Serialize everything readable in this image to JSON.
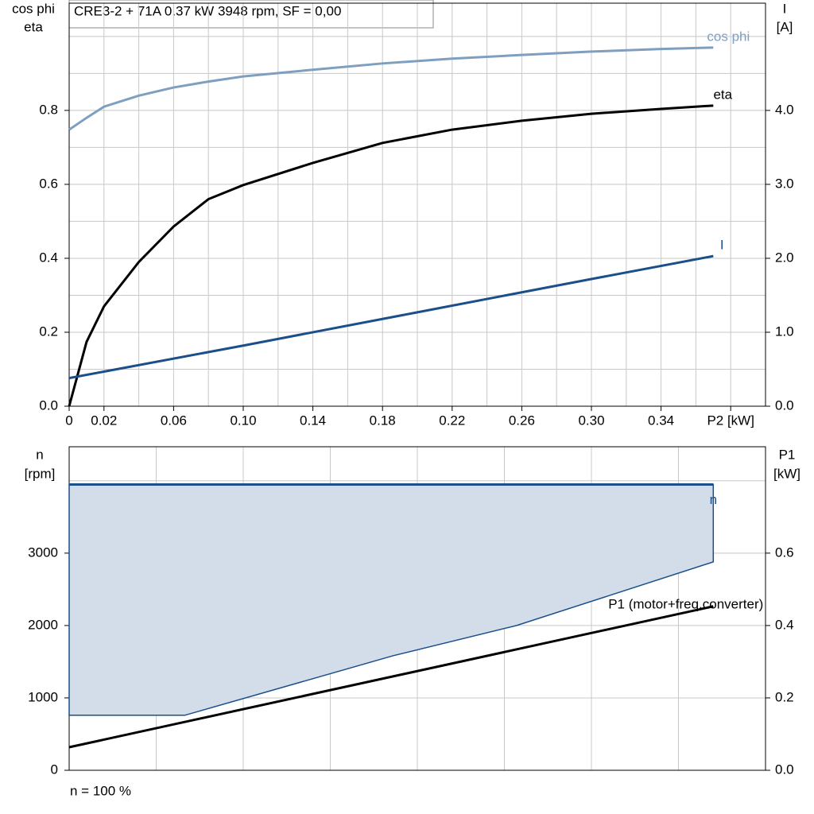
{
  "chart_data": [
    {
      "type": "line",
      "title": "CRE3-2 + 71A   0.37 kW   3948 rpm, SF = 0,00",
      "ylabel": [
        "cos phi",
        "eta"
      ],
      "y2label": [
        "I",
        "[A]"
      ],
      "xlim": [
        0,
        0.4
      ],
      "ylim": [
        0,
        1.09
      ],
      "y2lim": [
        0,
        5.45
      ],
      "xticks": [
        0,
        {
          "value": 0.02,
          "label": "0.02"
        },
        {
          "value": 0.06,
          "label": "0.06"
        },
        {
          "value": 0.1,
          "label": "0.10"
        },
        {
          "value": 0.14,
          "label": "0.14"
        },
        {
          "value": 0.18,
          "label": "0.18"
        },
        {
          "value": 0.22,
          "label": "0.22"
        },
        {
          "value": 0.26,
          "label": "0.26"
        },
        {
          "value": 0.3,
          "label": "0.30"
        },
        {
          "value": 0.34,
          "label": "0.34"
        },
        {
          "value": 0.38,
          "label": "P2 [kW]"
        }
      ],
      "xgrid": [
        0.02,
        0.04,
        0.06,
        0.08,
        0.1,
        0.12,
        0.14,
        0.16,
        0.18,
        0.2,
        0.22,
        0.24,
        0.26,
        0.28,
        0.3,
        0.32,
        0.34,
        0.36,
        0.38
      ],
      "yticks": [
        {
          "value": 0,
          "label": "0.0"
        },
        0.2,
        0.4,
        0.6,
        0.8
      ],
      "ygrid": [
        0.1,
        0.2,
        0.3,
        0.4,
        0.5,
        0.6,
        0.7,
        0.8,
        0.9,
        1.0
      ],
      "y2ticks": [
        {
          "value": 0,
          "label": "0.0"
        },
        {
          "value": 1,
          "label": "1.0"
        },
        {
          "value": 2,
          "label": "2.0"
        },
        {
          "value": 3,
          "label": "3.0"
        },
        {
          "value": 4,
          "label": "4.0"
        }
      ],
      "series": [
        {
          "name": "cos phi",
          "color": "#7f9fc0",
          "x": [
            0,
            0.01,
            0.02,
            0.04,
            0.06,
            0.08,
            0.1,
            0.14,
            0.18,
            0.22,
            0.26,
            0.3,
            0.34,
            0.37
          ],
          "values": [
            0.748,
            0.78,
            0.81,
            0.84,
            0.862,
            0.878,
            0.892,
            0.91,
            0.927,
            0.94,
            0.95,
            0.959,
            0.966,
            0.97
          ]
        },
        {
          "name": "eta",
          "color": "#000000",
          "x": [
            0,
            0.01,
            0.02,
            0.04,
            0.06,
            0.08,
            0.1,
            0.14,
            0.18,
            0.22,
            0.26,
            0.3,
            0.34,
            0.37
          ],
          "values": [
            0,
            0.174,
            0.27,
            0.39,
            0.486,
            0.56,
            0.598,
            0.658,
            0.712,
            0.748,
            0.772,
            0.791,
            0.804,
            0.813
          ]
        },
        {
          "name": "I",
          "color": "#1a4f8a",
          "axis": "y2",
          "x": [
            0,
            0.1,
            0.2,
            0.3,
            0.37
          ],
          "values": [
            0.38,
            0.82,
            1.27,
            1.72,
            2.03
          ]
        }
      ]
    },
    {
      "type": "line",
      "note": "n = 100 %",
      "ylabel": [
        "n",
        "[rpm]"
      ],
      "y2label": [
        "P1",
        "[kW]"
      ],
      "xlim": [
        0,
        0.4
      ],
      "ylim": [
        0,
        4470
      ],
      "y2lim": [
        0,
        0.894
      ],
      "xgrid": [
        0.05,
        0.1,
        0.15,
        0.2,
        0.25,
        0.3,
        0.35
      ],
      "yticks": [
        0,
        1000,
        2000,
        3000
      ],
      "ygrid": [
        1000,
        2000,
        3000,
        4000
      ],
      "y2ticks": [
        {
          "value": 0,
          "label": "0.0"
        },
        0.2,
        0.4,
        0.6
      ],
      "series": [
        {
          "name": "n",
          "color": "#1a4f8a",
          "x": [
            0,
            0.0664,
            0.186,
            0.257,
            0.37
          ],
          "values": [
            3948,
            3948,
            3948,
            3948,
            3948
          ],
          "min_values": [
            760,
            760,
            1582,
            2000,
            2879
          ]
        },
        {
          "name": "P1 (motor+freq.converter)",
          "color": "#000000",
          "axis": "y2",
          "x": [
            0,
            0.37
          ],
          "values": [
            0.0637,
            0.453
          ]
        }
      ]
    }
  ]
}
